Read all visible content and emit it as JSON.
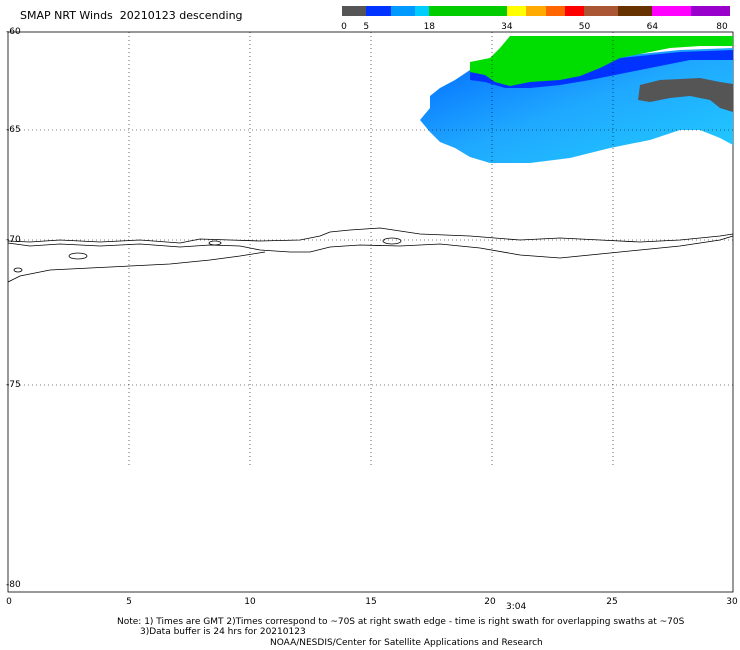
{
  "title": "SMAP NRT Winds  20210123 descending",
  "colorbar": {
    "segments": [
      {
        "color": "#555555",
        "from": 0,
        "to": 5
      },
      {
        "color": "#0033ff",
        "from": 5,
        "to": 10
      },
      {
        "color": "#0099ff",
        "from": 10,
        "to": 15
      },
      {
        "color": "#00ccff",
        "from": 15,
        "to": 18
      },
      {
        "color": "#00cc00",
        "from": 18,
        "to": 34
      },
      {
        "color": "#ffff00",
        "from": 34,
        "to": 38
      },
      {
        "color": "#ffaa00",
        "from": 38,
        "to": 42
      },
      {
        "color": "#ff6600",
        "from": 42,
        "to": 46
      },
      {
        "color": "#ff0000",
        "from": 46,
        "to": 50
      },
      {
        "color": "#aa5533",
        "from": 50,
        "to": 57
      },
      {
        "color": "#663300",
        "from": 57,
        "to": 64
      },
      {
        "color": "#ff00ff",
        "from": 64,
        "to": 72
      },
      {
        "color": "#9900cc",
        "from": 72,
        "to": 80
      }
    ],
    "labels": [
      "0",
      "5",
      "18",
      "34",
      "50",
      "64",
      "80"
    ]
  },
  "axes": {
    "lat_labels": [
      "-60",
      "-65",
      "-70",
      "-75",
      "-80"
    ],
    "lon_labels": [
      "0",
      "5",
      "10",
      "15",
      "20",
      "25",
      "30"
    ]
  },
  "pass_time": "3:04",
  "notes": [
    "Note: 1) Times are GMT 2)Times correspond to ~70S at right swath edge - time is right swath for overlapping swaths at ~70S",
    "3)Data buffer is 24 hrs for 20210123",
    "NOAA/NESDIS/Center for Satellite Applications and Research"
  ],
  "colors": {
    "wind_green": "#00dd00",
    "wind_blue_dark": "#0044ff",
    "wind_blue_light": "#22bbff",
    "wind_gray": "#555555",
    "grid": "#000000"
  }
}
